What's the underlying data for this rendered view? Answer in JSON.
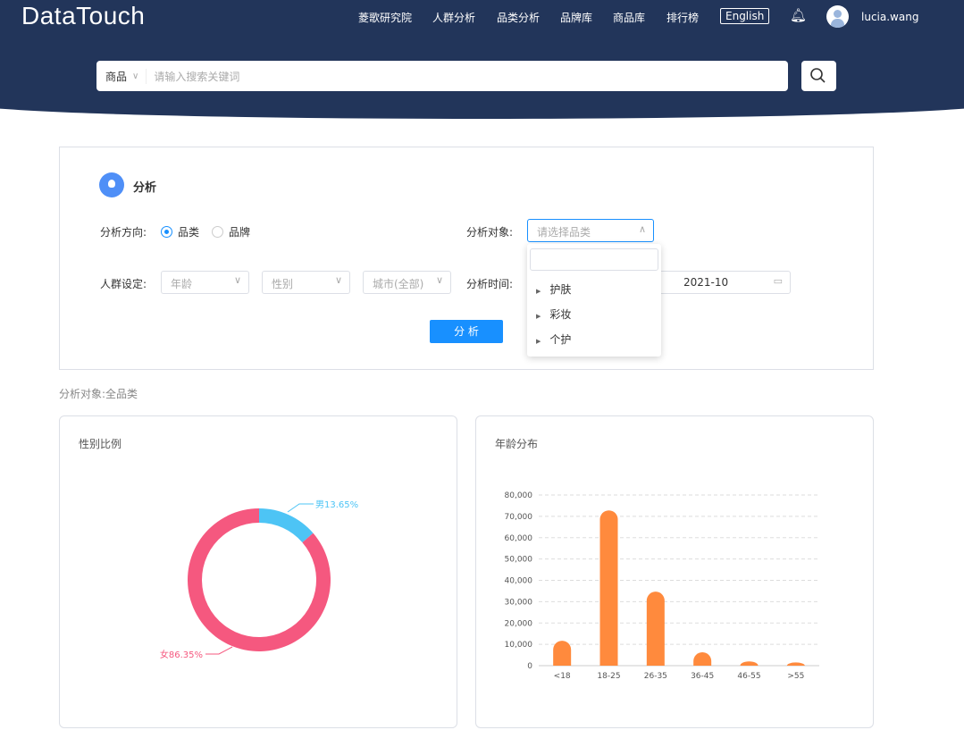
{
  "header": {
    "logo": "DataTouch",
    "nav": [
      "菱歌研究院",
      "人群分析",
      "品类分析",
      "品牌库",
      "商品库",
      "排行榜"
    ],
    "language": "English",
    "username": "lucia.wang"
  },
  "search": {
    "scope": "商品",
    "placeholder": "请输入搜索关键词"
  },
  "panel": {
    "title": "分析",
    "direction_label": "分析方向:",
    "direction_options": [
      "品类",
      "品牌"
    ],
    "direction_selected": "品类",
    "target_label": "分析对象:",
    "target_placeholder": "请选择品类",
    "crowd_label": "人群设定:",
    "age_placeholder": "年龄",
    "gender_placeholder": "性别",
    "city_placeholder": "城市(全部)",
    "time_label": "分析时间:",
    "time_end": "2021-10",
    "analyze_button": "分 析",
    "dropdown_items": [
      "护肤",
      "彩妆",
      "个护"
    ]
  },
  "summary": "分析对象:全品类",
  "colors": {
    "header": "#22355a",
    "primary": "#1890ff",
    "male": "#4dc4f5",
    "female": "#f5587f",
    "bar": "#ff8a3d"
  },
  "chart_data": [
    {
      "type": "pie",
      "title": "性别比例",
      "donut": true,
      "slices": [
        {
          "label": "男",
          "value": 13.65,
          "display": "男13.65%"
        },
        {
          "label": "女",
          "value": 86.35,
          "display": "女86.35%"
        }
      ]
    },
    {
      "type": "bar",
      "title": "年龄分布",
      "categories": [
        "<18",
        "18-25",
        "26-35",
        "36-45",
        "46-55",
        ">55"
      ],
      "values": [
        11700,
        72800,
        34700,
        6300,
        2000,
        1500
      ],
      "ylim": [
        0,
        80000
      ],
      "yticks": [
        "0",
        "10,000",
        "20,000",
        "30,000",
        "40,000",
        "50,000",
        "60,000",
        "70,000",
        "80,000"
      ],
      "grid": true
    }
  ]
}
